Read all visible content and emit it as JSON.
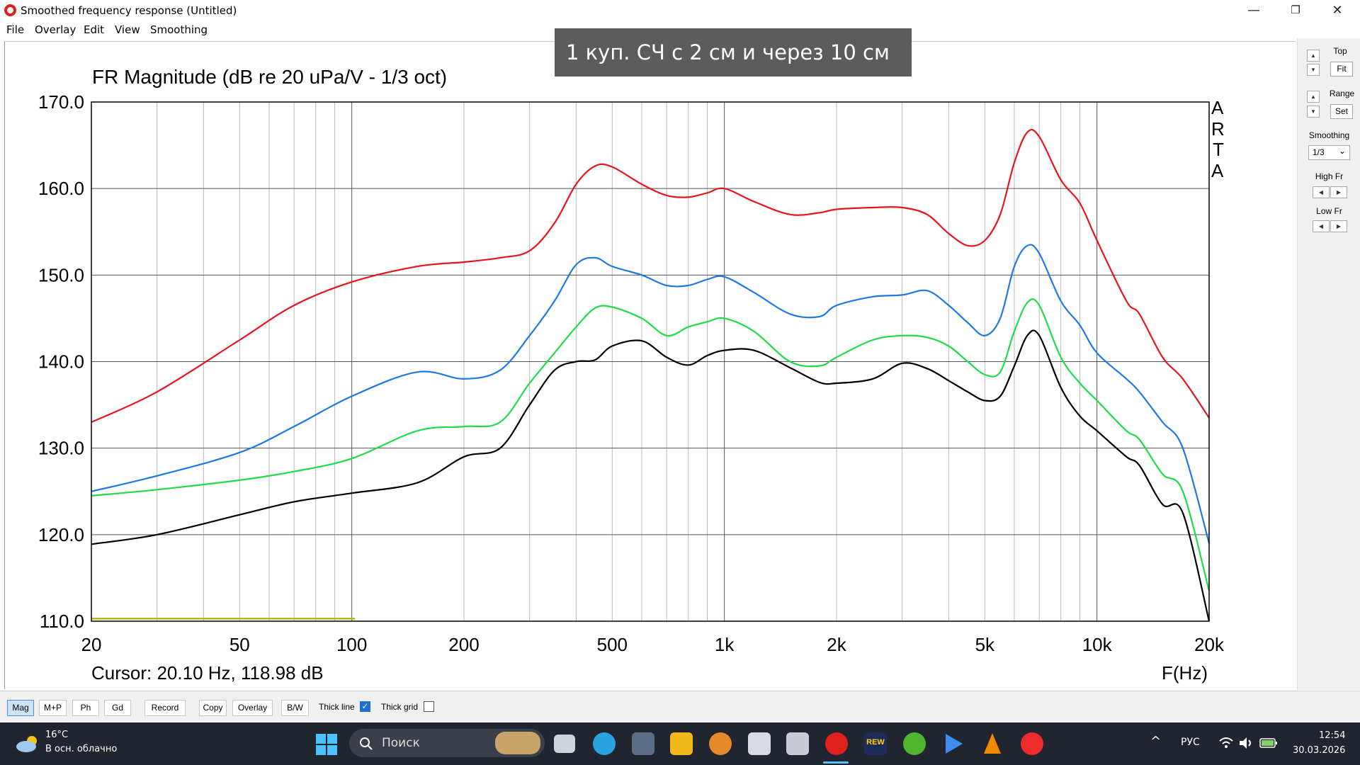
{
  "window": {
    "title": "Smoothed frequency response (Untitled)",
    "minimize_glyph": "—",
    "maximize_glyph": "❐",
    "close_glyph": "✕",
    "app_icon": "arta-logo-icon"
  },
  "menu": [
    "File",
    "Overlay",
    "Edit",
    "View",
    "Smoothing"
  ],
  "overlay_title": "1 куп. СЧ с 2 см и через 10 см",
  "cursor_readout": "Cursor: 20.10 Hz, 118.98 dB",
  "watermark": [
    "A",
    "R",
    "T",
    "A"
  ],
  "chart_data": {
    "type": "line",
    "title": "FR Magnitude (dB re 20 uPa/V - 1/3 oct)",
    "xlabel": "F(Hz)",
    "ylabel": "",
    "x_scale": "log",
    "xlim": [
      20,
      20000
    ],
    "ylim": [
      110,
      170
    ],
    "grid": true,
    "x_ticks": [
      20,
      50,
      100,
      200,
      500,
      1000,
      2000,
      5000,
      10000,
      20000
    ],
    "x_tick_labels": [
      "20",
      "50",
      "100",
      "200",
      "500",
      "1k",
      "2k",
      "5k",
      "10k",
      "20k"
    ],
    "y_ticks": [
      110,
      120,
      130,
      140,
      150,
      160,
      170
    ],
    "y_tick_labels": [
      "110.0",
      "120.0",
      "130.0",
      "140.0",
      "150.0",
      "160.0",
      "170.0"
    ],
    "x": [
      20,
      30,
      50,
      70,
      100,
      150,
      200,
      250,
      300,
      350,
      400,
      450,
      500,
      600,
      700,
      800,
      900,
      1000,
      1200,
      1500,
      1800,
      2000,
      2500,
      3000,
      3500,
      4000,
      4500,
      5000,
      5500,
      6000,
      6500,
      7000,
      8000,
      9000,
      10000,
      12000,
      13000,
      15000,
      17000,
      20000
    ],
    "series": [
      {
        "color": "#e8141e",
        "values": [
          133,
          136.5,
          142.5,
          146.5,
          149.2,
          151,
          151.5,
          152,
          152.8,
          156,
          160.5,
          162.6,
          162.5,
          160.5,
          159.2,
          159,
          159.5,
          160,
          158.5,
          157,
          157.2,
          157.6,
          157.8,
          157.8,
          157,
          154.8,
          153.4,
          154,
          157,
          163,
          166.5,
          166,
          161,
          158.3,
          154,
          147,
          145.5,
          140.5,
          138,
          133.5
        ]
      },
      {
        "color": "#1e78e6",
        "values": [
          125,
          126.8,
          129.5,
          132.5,
          136,
          138.8,
          138,
          139,
          143,
          147,
          151.2,
          152,
          151,
          150,
          148.8,
          148.8,
          149.5,
          149.8,
          148,
          145.5,
          145.2,
          146.5,
          147.5,
          147.7,
          148.2,
          146.5,
          144.5,
          143,
          145,
          151,
          153.4,
          152.5,
          147,
          144.2,
          141,
          138,
          136.5,
          133,
          130,
          119
        ]
      },
      {
        "color": "#1edc46",
        "values": [
          124.5,
          125.2,
          126.3,
          127.3,
          128.8,
          132,
          132.5,
          133,
          137.5,
          141,
          144,
          146.2,
          146.3,
          145,
          143,
          144,
          144.6,
          145,
          143.5,
          140,
          139.5,
          140.5,
          142.5,
          143,
          142.8,
          141.8,
          140,
          138.5,
          138.8,
          143.5,
          146.8,
          146.5,
          140.5,
          137.5,
          135.5,
          132,
          131,
          127,
          125,
          113.5
        ]
      },
      {
        "color": "#000000",
        "values": [
          118.9,
          120,
          122.3,
          123.8,
          124.8,
          126,
          129,
          130,
          135,
          139,
          140,
          140.2,
          141.8,
          142.4,
          140.5,
          139.6,
          140.7,
          141.3,
          141.3,
          139.3,
          137.6,
          137.5,
          138,
          139.8,
          139.2,
          137.8,
          136.5,
          135.5,
          136,
          139.5,
          143,
          143,
          137,
          133.7,
          132,
          129,
          128,
          123.5,
          122.5,
          110
        ]
      }
    ],
    "cursor_line": {
      "color": "#b4b414",
      "y": 110.3,
      "x_from": 20,
      "x_to": 102
    }
  },
  "right_panel": {
    "top_label": "Top",
    "fit_label": "Fit",
    "range_label": "Range",
    "set_label": "Set",
    "smoothing_label": "Smoothing",
    "smoothing_value": "1/3",
    "high_fr_label": "High Fr",
    "low_fr_label": "Low Fr",
    "up_glyph": "▲",
    "down_glyph": "▼",
    "left_glyph": "◀",
    "right_glyph": "▶",
    "dropdown_glyph": "⌄"
  },
  "toolbar": {
    "buttons": [
      "Mag",
      "M+P",
      "Ph",
      "Gd",
      "Record",
      "Copy",
      "Overlay",
      "B/W"
    ],
    "active": "Mag",
    "thick_line_label": "Thick line",
    "thick_line_checked": true,
    "thick_grid_label": "Thick grid",
    "thick_grid_checked": false,
    "check_glyph": "✓"
  },
  "taskbar": {
    "weather_temp": "16°C",
    "weather_desc": "В осн. облачно",
    "search_placeholder": "Поиск",
    "language": "РУС",
    "time": "12:54",
    "date": "30.03.2026",
    "tray_chevron": "^",
    "icons": [
      "windows-start-icon",
      "search-icon",
      "task-view-icon",
      "telegram-icon",
      "calculator-icon",
      "file-explorer-icon",
      "eye-app-icon",
      "tool-app-icon",
      "chart-app-icon",
      "arta-app-icon",
      "rew-app-icon",
      "utorrent-icon",
      "media-player-icon",
      "vlc-icon",
      "yandex-browser-icon",
      "wifi-icon",
      "volume-icon",
      "battery-icon"
    ],
    "rew_label": "REW"
  }
}
